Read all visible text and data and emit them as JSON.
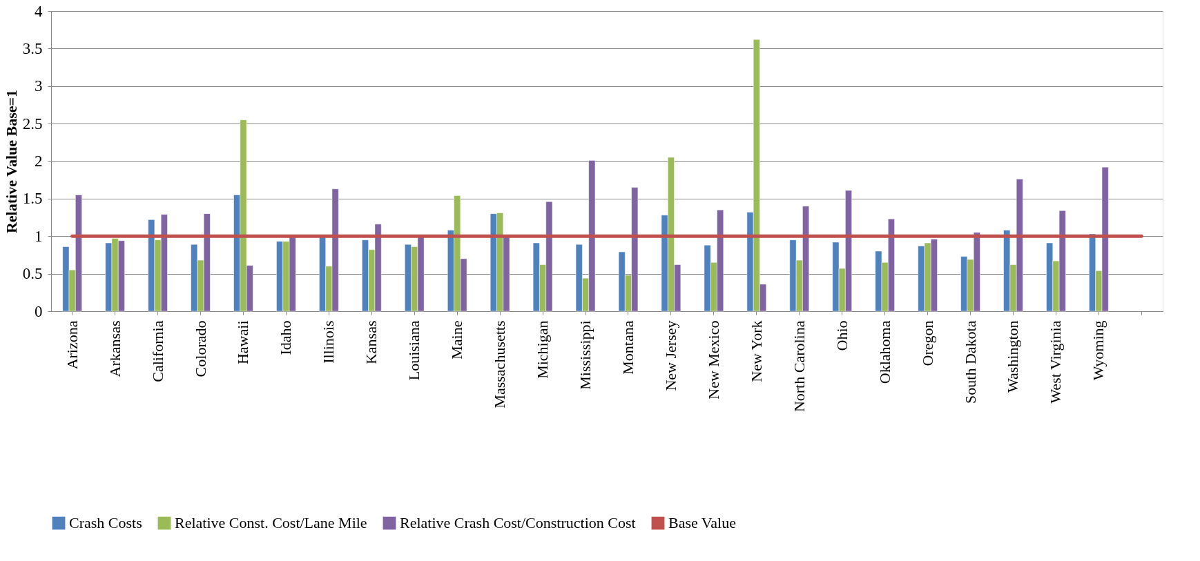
{
  "chart_data": {
    "type": "bar",
    "ylabel": "Relative Value Base=1",
    "categories": [
      "Arizona",
      "Arkansas",
      "California",
      "Colorado",
      "Hawaii",
      "Idaho",
      "Illinois",
      "Kansas",
      "Louisiana",
      "Maine",
      "Massachusetts",
      "Michigan",
      "Mississippi",
      "Montana",
      "New Jersey",
      "New Mexico",
      "New York",
      "North Carolina",
      "Ohio",
      "Oklahoma",
      "Oregon",
      "South Dakota",
      "Washington",
      "West Virginia",
      "Wyoming",
      null
    ],
    "series": [
      {
        "name": "Crash Costs",
        "color": "#4f81bd",
        "values": [
          0.86,
          0.91,
          1.22,
          0.89,
          1.55,
          0.93,
          0.99,
          0.95,
          0.89,
          1.08,
          1.3,
          0.91,
          0.89,
          0.79,
          1.28,
          0.88,
          1.32,
          0.95,
          0.92,
          0.8,
          0.87,
          0.73,
          1.08,
          0.91,
          1.03,
          null
        ]
      },
      {
        "name": "Relative Const. Cost/Lane Mile",
        "color": "#9bbb59",
        "values": [
          0.55,
          0.97,
          0.95,
          0.68,
          2.55,
          0.93,
          0.6,
          0.82,
          0.86,
          1.54,
          1.31,
          0.62,
          0.44,
          0.48,
          2.05,
          0.65,
          3.62,
          0.68,
          0.57,
          0.65,
          0.91,
          0.69,
          0.62,
          0.67,
          0.54,
          null
        ]
      },
      {
        "name": "Relative Crash Cost/Construction Cost",
        "color": "#8064a2",
        "values": [
          1.55,
          0.94,
          1.29,
          1.3,
          0.61,
          1.0,
          1.63,
          1.16,
          1.0,
          0.7,
          1.0,
          1.46,
          2.01,
          1.65,
          0.62,
          1.35,
          0.36,
          1.4,
          1.61,
          1.23,
          0.96,
          1.05,
          1.76,
          1.34,
          1.92,
          null
        ]
      },
      {
        "name": "Base Value",
        "type": "line",
        "color": "#c0504d",
        "values": [
          1,
          1,
          1,
          1,
          1,
          1,
          1,
          1,
          1,
          1,
          1,
          1,
          1,
          1,
          1,
          1,
          1,
          1,
          1,
          1,
          1,
          1,
          1,
          1,
          1,
          1
        ]
      }
    ],
    "ylim": [
      0,
      4
    ],
    "yticks": [
      0,
      0.5,
      1,
      1.5,
      2,
      2.5,
      3,
      3.5,
      4
    ],
    "grid": "y",
    "legend": "bottom"
  }
}
